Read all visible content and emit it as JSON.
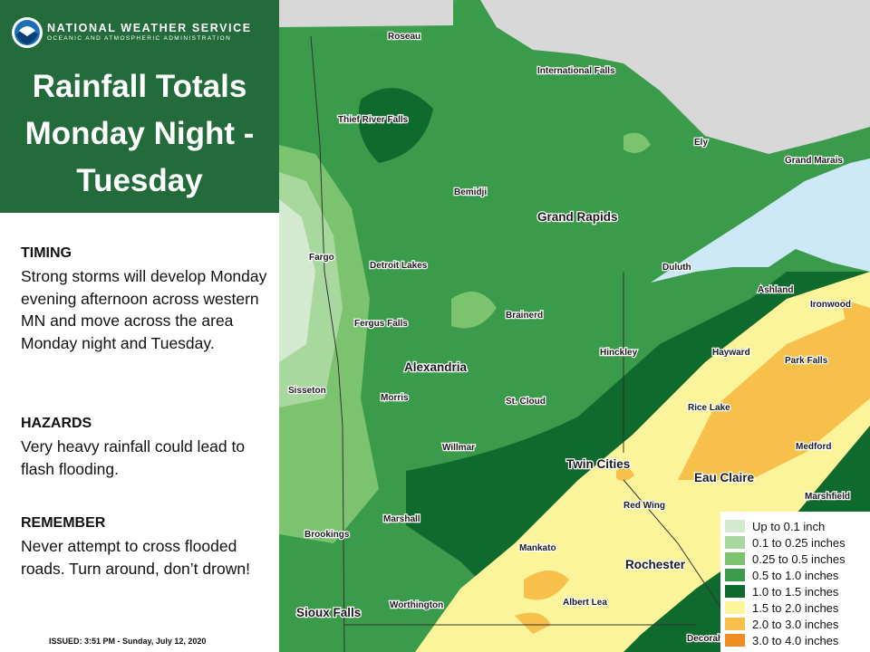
{
  "header": {
    "agency": "NATIONAL WEATHER SERVICE",
    "subagency": "OCEANIC AND ATMOSPHERIC ADMINISTRATION",
    "title_lines": [
      "Rainfall Totals",
      "Monday Night -",
      "Tuesday"
    ]
  },
  "sections": [
    {
      "heading": "TIMING",
      "body": "Strong storms will develop Monday evening afternoon across western MN and move across the area Monday night and Tuesday."
    },
    {
      "heading": "HAZARDS",
      "body": "Very heavy rainfall could lead to flash flooding."
    },
    {
      "heading": "REMEMBER",
      "body": "Never attempt to cross flooded roads. Turn around, don’t drown!"
    }
  ],
  "issued": "ISSUED: 3:51 PM - Sunday, July 12, 2020",
  "map": {
    "cities": [
      "Roseau",
      "International Falls",
      "Thief River Falls",
      "Ely",
      "Grand Marais",
      "Bemidji",
      "Grand Rapids",
      "Fargo",
      "Detroit Lakes",
      "Duluth",
      "Ashland",
      "Ironwood",
      "Brainerd",
      "Fergus Falls",
      "Hinckley",
      "Hayward",
      "Park Falls",
      "Alexandria",
      "Sisseton",
      "Morris",
      "St. Cloud",
      "Rice Lake",
      "Willmar",
      "Medford",
      "Twin Cities",
      "Eau Claire",
      "Red Wing",
      "Marshfield",
      "Marshall",
      "Brookings",
      "Mankato",
      "Rochester",
      "Albert Lea",
      "Worthington",
      "Sioux Falls",
      "Decorah"
    ]
  },
  "legend": [
    {
      "label": "Up to 0.1 inch",
      "color": "#d3ead0"
    },
    {
      "label": "0.1 to 0.25 inches",
      "color": "#a8d89e"
    },
    {
      "label": "0.25 to 0.5 inches",
      "color": "#7cc36f"
    },
    {
      "label": "0.5 to 1.0 inches",
      "color": "#3a9b4a"
    },
    {
      "label": "1.0 to 1.5 inches",
      "color": "#0f6a2e"
    },
    {
      "label": "1.5 to 2.0 inches",
      "color": "#fbf49a"
    },
    {
      "label": "2.0 to 3.0 inches",
      "color": "#f6c04a"
    },
    {
      "label": "3.0 to 4.0 inches",
      "color": "#f08a22"
    }
  ]
}
